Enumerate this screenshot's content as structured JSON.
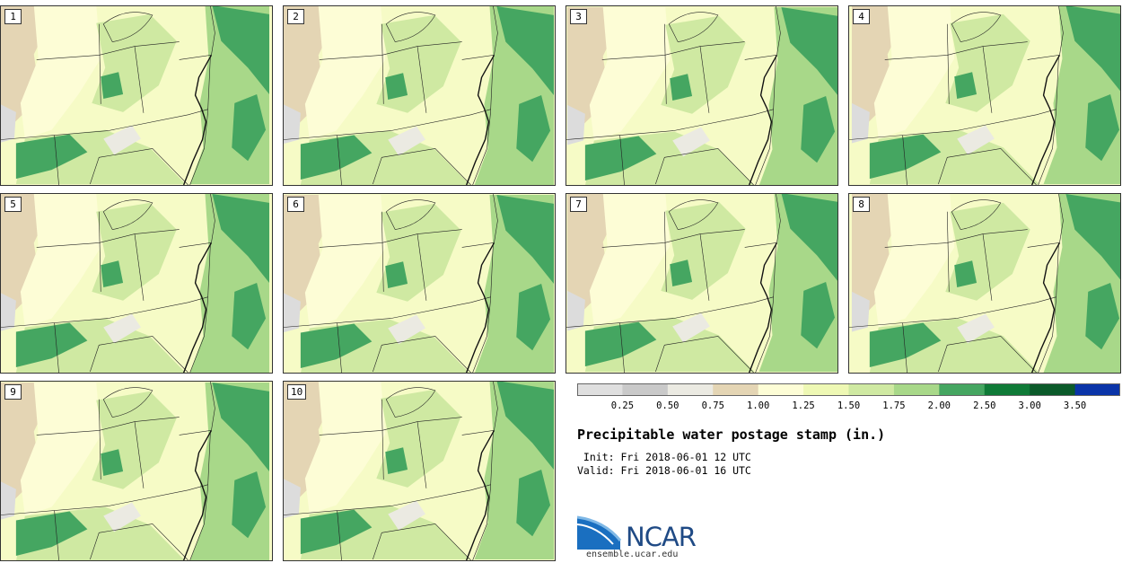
{
  "panels": [
    {
      "label": "1"
    },
    {
      "label": "2"
    },
    {
      "label": "3"
    },
    {
      "label": "4"
    },
    {
      "label": "5"
    },
    {
      "label": "6"
    },
    {
      "label": "7"
    },
    {
      "label": "8"
    },
    {
      "label": "9"
    },
    {
      "label": "10"
    }
  ],
  "colorbar": {
    "ticks": [
      "0.25",
      "0.50",
      "0.75",
      "1.00",
      "1.25",
      "1.50",
      "1.75",
      "2.00",
      "2.50",
      "3.00",
      "3.50"
    ],
    "colors": [
      "#dfdfdf",
      "#c9c9c9",
      "#ebeae2",
      "#e4d5b4",
      "#fdfdd6",
      "#eef8b4",
      "#cfe9a2",
      "#a8d889",
      "#45a661",
      "#0f7a37",
      "#0b5a2a",
      "#0a34a8"
    ]
  },
  "title": "Precipitable water postage stamp (in.)",
  "init": " Init: Fri 2018-06-01 12 UTC",
  "valid": "Valid: Fri 2018-06-01 16 UTC",
  "logo": {
    "name": "NCAR",
    "url": "ensemble.ucar.edu"
  }
}
